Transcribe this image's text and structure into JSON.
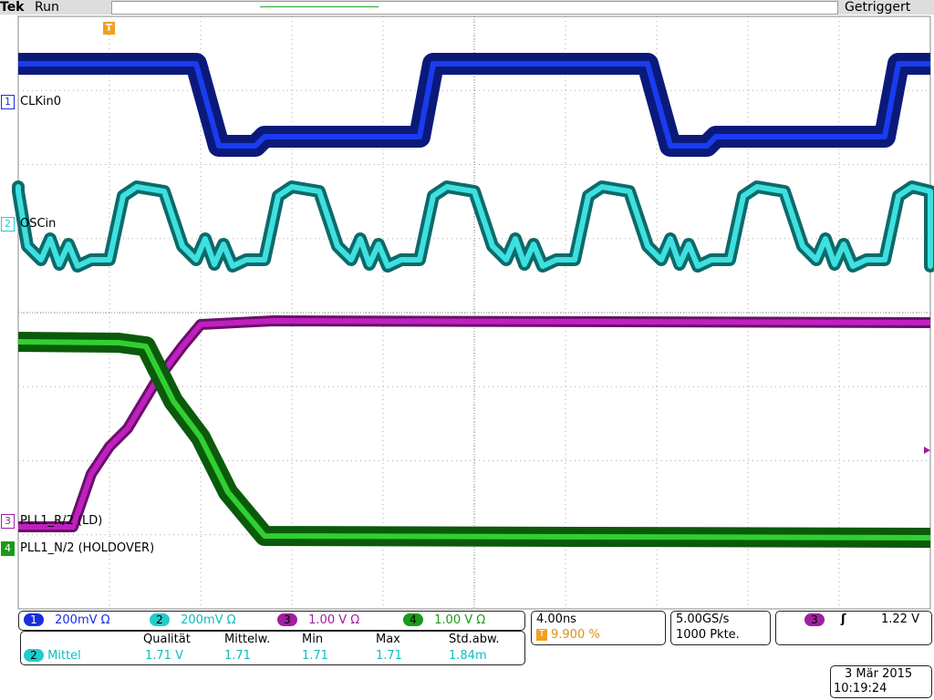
{
  "header": {
    "brand": "Tek",
    "state": "Run",
    "trigger_marker": "T",
    "status": "Getriggert"
  },
  "channels": [
    {
      "number": "1",
      "label": "CLKin0",
      "scale": "200mV Ω"
    },
    {
      "number": "2",
      "label": "OSCin",
      "scale": "200mV Ω"
    },
    {
      "number": "3",
      "label": "PLL1_R/2 (LD)",
      "scale": "1.00 V Ω"
    },
    {
      "number": "4",
      "label": "PLL1_N/2 (HOLDOVER)",
      "scale": "1.00 V Ω"
    }
  ],
  "timebase": {
    "scale": "4.00ns",
    "trigger_icon": "T",
    "position": "9.900 %"
  },
  "acquisition": {
    "rate": "5.00GS/s",
    "points": "1000 Pkte."
  },
  "trigger": {
    "source": "3",
    "slope": "ʃ",
    "level": "1.22 V"
  },
  "measurements": {
    "headers": [
      "Qualität",
      "Mittelw.",
      "Min",
      "Max",
      "Std.abw."
    ],
    "source": "2",
    "name": "Mittel",
    "values": [
      "1.71 V",
      "1.71",
      "1.71",
      "1.71",
      "1.84m"
    ]
  },
  "datetime": {
    "date": "3 Mär 2015",
    "time": "10:19:24"
  }
}
